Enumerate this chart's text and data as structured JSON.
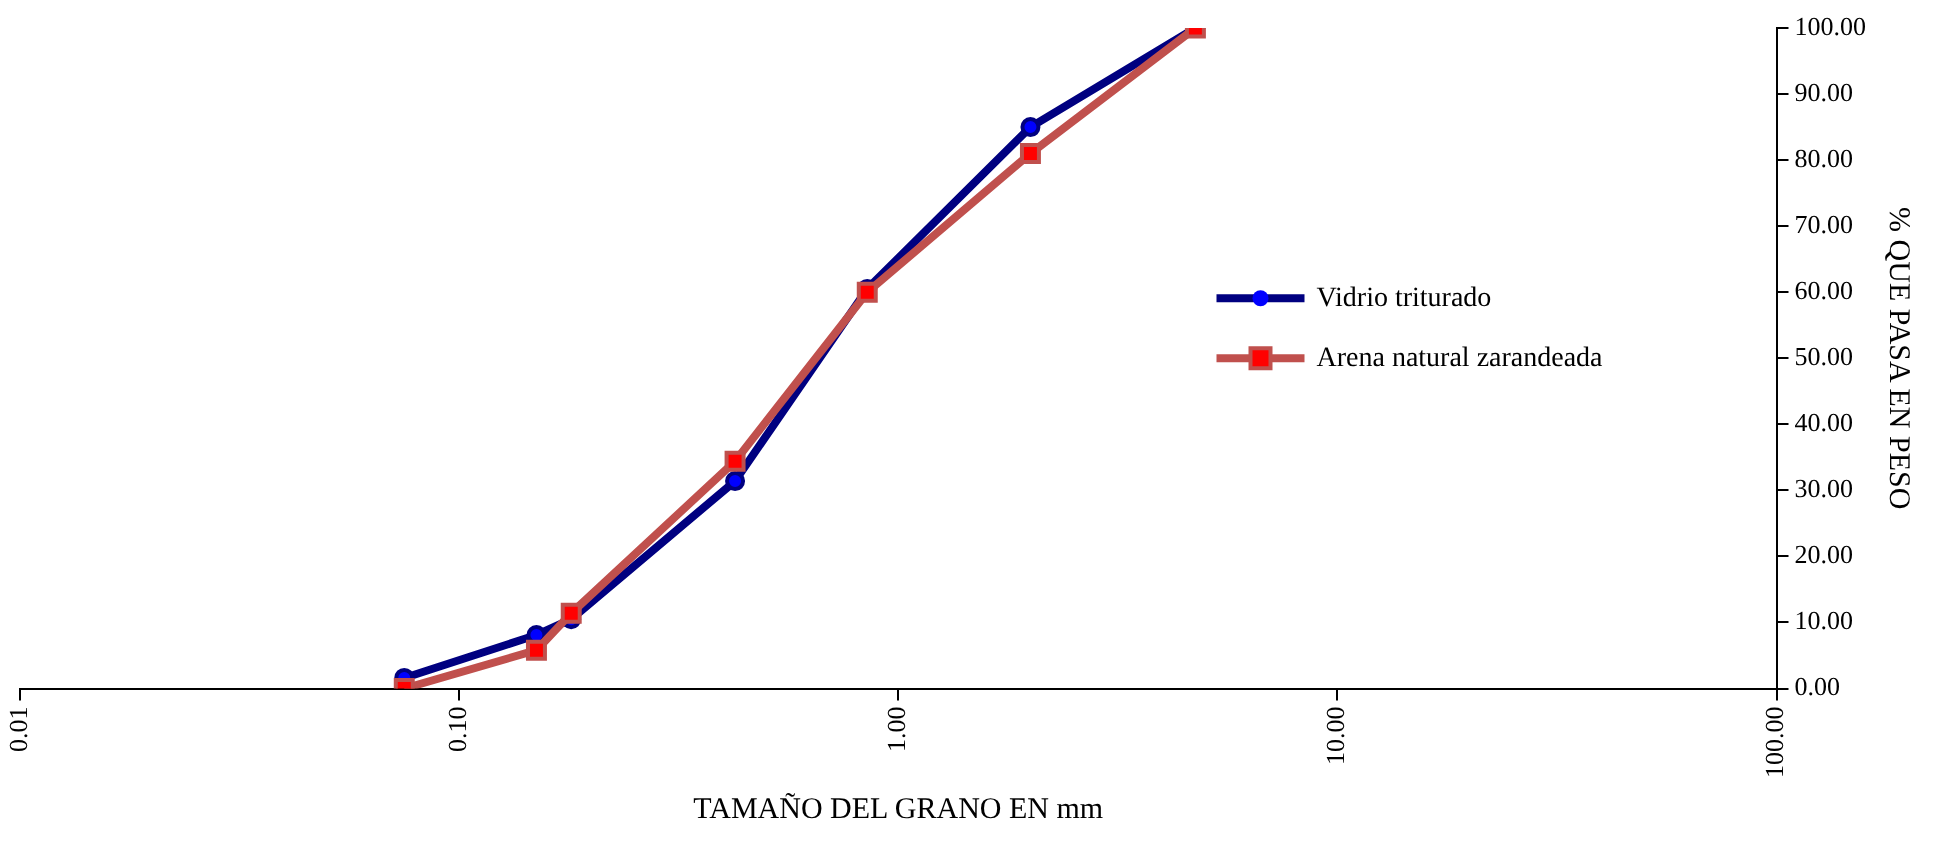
{
  "chart_data": {
    "type": "line",
    "xlabel": "TAMAÑO DEL GRANO EN mm",
    "ylabel": "% QUE PASA EN PESO",
    "log": "x",
    "xlim": [
      0.01,
      100
    ],
    "xticks": [
      {
        "value": 0.01,
        "label": "0.01"
      },
      {
        "value": 0.1,
        "label": "0.10"
      },
      {
        "value": 1,
        "label": "1.00"
      },
      {
        "value": 10,
        "label": "10.00"
      },
      {
        "value": 100,
        "label": "100.00"
      }
    ],
    "ylim": [
      0,
      100
    ],
    "yticks": [
      {
        "value": 0,
        "label": "0.00"
      },
      {
        "value": 10,
        "label": "10.00"
      },
      {
        "value": 20,
        "label": "20.00"
      },
      {
        "value": 30,
        "label": "30.00"
      },
      {
        "value": 40,
        "label": "40.00"
      },
      {
        "value": 50,
        "label": "50.00"
      },
      {
        "value": 60,
        "label": "60.00"
      },
      {
        "value": 70,
        "label": "70.00"
      },
      {
        "value": 80,
        "label": "80.00"
      },
      {
        "value": 90,
        "label": "90.00"
      },
      {
        "value": 100,
        "label": "100.00"
      }
    ],
    "x": [
      0.075,
      0.15,
      0.18,
      0.425,
      0.85,
      2,
      4.75
    ],
    "series": [
      {
        "name": "Vidrio triturado",
        "color": "#000080",
        "marker": "circle",
        "values": [
          1.6,
          8.1,
          10.5,
          31.4,
          60.5,
          85,
          100
        ]
      },
      {
        "name": "Arena natural zarandeada",
        "color": "#c0504d",
        "marker": "square",
        "values": [
          0,
          5.8,
          11.4,
          34.4,
          60,
          81,
          100
        ]
      }
    ],
    "grid": false,
    "legend": "right",
    "line_style": "solid"
  }
}
